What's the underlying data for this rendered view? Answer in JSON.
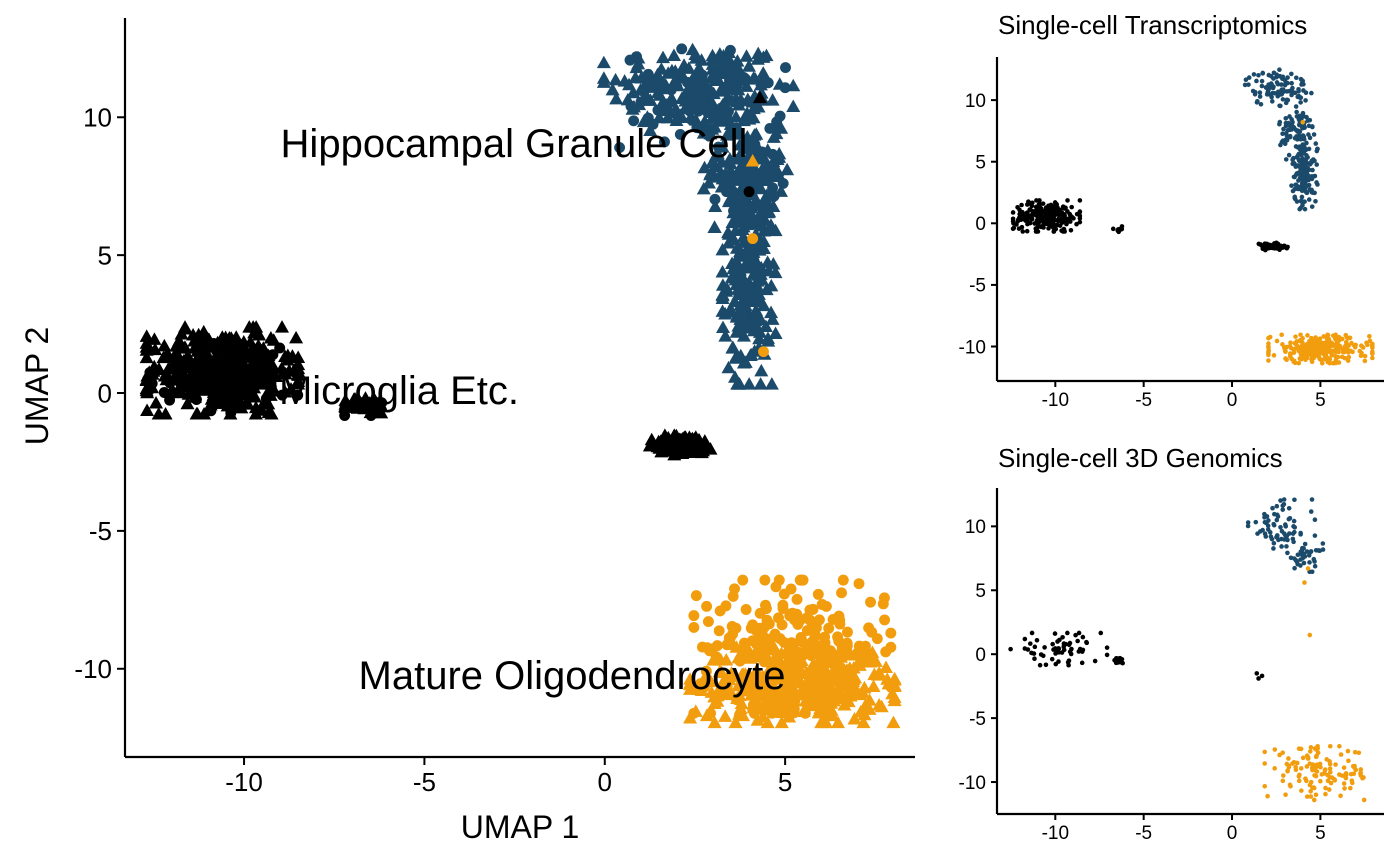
{
  "colors": {
    "hippocampal_granule_cell": "#1b4a6b",
    "microglia_etc": "#000000",
    "mature_oligodendrocyte": "#f29d0e",
    "axis": "#000000"
  },
  "chart_data": [
    {
      "type": "scatter",
      "id": "main",
      "title": "",
      "xlabel": "UMAP 1",
      "ylabel": "UMAP 2",
      "xlim": [
        -13.3,
        8.6
      ],
      "ylim": [
        -13.2,
        13.6
      ],
      "xticks": [
        -10,
        -5,
        0,
        5
      ],
      "yticks": [
        -10,
        -5,
        0,
        5,
        10
      ],
      "xtick_labels": [
        "-10",
        "-5",
        "0",
        "5"
      ],
      "ytick_labels": [
        "-10",
        "-5",
        "0",
        "5",
        "10"
      ],
      "grid": false,
      "legend": "none",
      "cluster_labels": [
        {
          "text": "Hippocampal Granule Cell",
          "x": 0.0,
          "y": 9.0
        },
        {
          "text": "Microglia Etc.",
          "x": -3.5,
          "y": 0.0
        },
        {
          "text": "Mature Oligodendrocyte",
          "x": 0.8,
          "y": -10.0
        }
      ],
      "markers": {
        "single-cell transcriptomics": "triangle",
        "single-cell 3D genomics": "circle"
      },
      "clusters": [
        {
          "type": "Hippocampal Granule Cell",
          "color_key": "hippocampal_granule_cell",
          "marker": "triangle",
          "n": 520,
          "blobs": [
            {
              "cx": 2.6,
              "cy": 11.0,
              "sx": 1.25,
              "sy": 0.85,
              "w": 0.34
            },
            {
              "cx": 3.9,
              "cy": 8.3,
              "sx": 0.55,
              "sy": 1.1,
              "w": 0.2
            },
            {
              "cx": 4.0,
              "cy": 4.3,
              "sx": 0.35,
              "sy": 1.9,
              "w": 0.46
            }
          ]
        },
        {
          "type": "Hippocampal Granule Cell",
          "color_key": "hippocampal_granule_cell",
          "marker": "circle",
          "n": 90,
          "blobs": [
            {
              "cx": 2.7,
              "cy": 10.6,
              "sx": 1.1,
              "sy": 0.9,
              "w": 0.6
            },
            {
              "cx": 4.0,
              "cy": 7.7,
              "sx": 0.45,
              "sy": 0.7,
              "w": 0.4
            }
          ]
        },
        {
          "type": "Microglia Etc.",
          "color_key": "microglia_etc",
          "marker": "triangle",
          "n": 400,
          "blobs": [
            {
              "cx": -10.6,
              "cy": 0.8,
              "sx": 1.0,
              "sy": 0.75,
              "w": 0.9
            },
            {
              "cx": -6.6,
              "cy": -0.45,
              "sx": 0.28,
              "sy": 0.15,
              "w": 0.1
            }
          ]
        },
        {
          "type": "Microglia Etc.",
          "color_key": "microglia_etc",
          "marker": "triangle",
          "n": 110,
          "blobs": [
            {
              "cx": 2.2,
              "cy": -1.9,
              "sx": 0.45,
              "sy": 0.17,
              "w": 1.0
            }
          ]
        },
        {
          "type": "Microglia Etc.",
          "color_key": "microglia_etc",
          "marker": "circle",
          "n": 60,
          "blobs": [
            {
              "cx": -10.3,
              "cy": 0.7,
              "sx": 1.1,
              "sy": 0.7,
              "w": 0.8
            },
            {
              "cx": -6.6,
              "cy": -0.5,
              "sx": 0.3,
              "sy": 0.15,
              "w": 0.2
            }
          ]
        },
        {
          "type": "Mature Oligodendrocyte",
          "color_key": "mature_oligodendrocyte",
          "marker": "circle",
          "n": 230,
          "blobs": [
            {
              "cx": 5.2,
              "cy": -9.2,
              "sx": 1.3,
              "sy": 1.15,
              "w": 1.0
            }
          ]
        },
        {
          "type": "Mature Oligodendrocyte",
          "color_key": "mature_oligodendrocyte",
          "marker": "triangle",
          "n": 330,
          "blobs": [
            {
              "cx": 5.2,
              "cy": -10.6,
              "sx": 1.35,
              "sy": 0.65,
              "w": 1.0
            }
          ]
        }
      ],
      "extra_points": [
        {
          "x": 4.3,
          "y": 10.7,
          "color_key": "microglia_etc",
          "marker": "triangle"
        },
        {
          "x": 4.0,
          "y": 7.3,
          "color_key": "microglia_etc",
          "marker": "circle"
        },
        {
          "x": 4.1,
          "y": 5.6,
          "color_key": "mature_oligodendrocyte",
          "marker": "circle"
        },
        {
          "x": 4.1,
          "y": 8.4,
          "color_key": "mature_oligodendrocyte",
          "marker": "triangle"
        },
        {
          "x": 4.4,
          "y": 1.5,
          "color_key": "mature_oligodendrocyte",
          "marker": "circle"
        }
      ]
    },
    {
      "type": "scatter",
      "id": "transcriptomics",
      "title": "Single-cell Transcriptomics",
      "xlabel": "",
      "ylabel": "",
      "xlim": [
        -13.3,
        8.6
      ],
      "ylim": [
        -12.8,
        13.5
      ],
      "xticks": [
        -10,
        -5,
        0,
        5
      ],
      "yticks": [
        -10,
        -5,
        0,
        5,
        10
      ],
      "xtick_labels": [
        "-10",
        "-5",
        "0",
        "5"
      ],
      "ytick_labels": [
        "-10",
        "-5",
        "0",
        "5",
        "10"
      ],
      "grid": false,
      "legend": "none",
      "clusters": [
        {
          "type": "Hippocampal Granule Cell",
          "color_key": "hippocampal_granule_cell",
          "marker": "dot",
          "n": 330,
          "blobs": [
            {
              "cx": 2.6,
              "cy": 11.0,
              "sx": 0.9,
              "sy": 0.7,
              "w": 0.3
            },
            {
              "cx": 3.6,
              "cy": 7.5,
              "sx": 0.45,
              "sy": 1.1,
              "w": 0.25
            },
            {
              "cx": 4.1,
              "cy": 4.3,
              "sx": 0.35,
              "sy": 1.5,
              "w": 0.45
            }
          ]
        },
        {
          "type": "Microglia Etc.",
          "color_key": "microglia_etc",
          "marker": "dot",
          "n": 260,
          "blobs": [
            {
              "cx": -10.5,
              "cy": 0.6,
              "sx": 0.9,
              "sy": 0.6,
              "w": 0.97
            },
            {
              "cx": -6.5,
              "cy": -0.5,
              "sx": 0.2,
              "sy": 0.12,
              "w": 0.03
            }
          ]
        },
        {
          "type": "Microglia Etc.",
          "color_key": "microglia_etc",
          "marker": "dot",
          "n": 60,
          "blobs": [
            {
              "cx": 2.2,
              "cy": -1.9,
              "sx": 0.45,
              "sy": 0.15,
              "w": 1.0
            }
          ]
        },
        {
          "type": "Mature Oligodendrocyte",
          "color_key": "mature_oligodendrocyte",
          "marker": "dot",
          "n": 300,
          "blobs": [
            {
              "cx": 5.0,
              "cy": -10.2,
              "sx": 1.4,
              "sy": 0.55,
              "w": 1.0
            }
          ]
        }
      ],
      "extra_points": [
        {
          "x": 4.0,
          "y": 8.2,
          "color_key": "mature_oligodendrocyte",
          "marker": "dot"
        }
      ]
    },
    {
      "type": "scatter",
      "id": "genomics",
      "title": "Single-cell 3D Genomics",
      "xlabel": "",
      "ylabel": "",
      "xlim": [
        -13.3,
        8.6
      ],
      "ylim": [
        -12.5,
        13.0
      ],
      "xticks": [
        -10,
        -5,
        0,
        5
      ],
      "yticks": [
        -10,
        -5,
        0,
        5,
        10
      ],
      "xtick_labels": [
        "-10",
        "-5",
        "0",
        "5"
      ],
      "ytick_labels": [
        "-10",
        "-5",
        "0",
        "5",
        "10"
      ],
      "grid": false,
      "legend": "none",
      "clusters": [
        {
          "type": "Hippocampal Granule Cell",
          "color_key": "hippocampal_granule_cell",
          "marker": "dot",
          "n": 105,
          "blobs": [
            {
              "cx": 2.8,
              "cy": 10.0,
              "sx": 0.9,
              "sy": 1.0,
              "w": 0.65
            },
            {
              "cx": 4.1,
              "cy": 7.6,
              "sx": 0.5,
              "sy": 0.55,
              "w": 0.35
            }
          ]
        },
        {
          "type": "Microglia Etc.",
          "color_key": "microglia_etc",
          "marker": "dot",
          "n": 72,
          "blobs": [
            {
              "cx": -9.8,
              "cy": 0.4,
              "sx": 1.3,
              "sy": 0.6,
              "w": 0.85
            },
            {
              "cx": -6.5,
              "cy": -0.5,
              "sx": 0.2,
              "sy": 0.1,
              "w": 0.15
            }
          ]
        },
        {
          "type": "Mature Oligodendrocyte",
          "color_key": "mature_oligodendrocyte",
          "marker": "dot",
          "n": 125,
          "blobs": [
            {
              "cx": 5.0,
              "cy": -9.3,
              "sx": 1.5,
              "sy": 1.0,
              "w": 1.0
            }
          ]
        }
      ],
      "extra_points": [
        {
          "x": 1.4,
          "y": -1.5,
          "color_key": "microglia_etc",
          "marker": "dot"
        },
        {
          "x": 1.7,
          "y": -1.7,
          "color_key": "microglia_etc",
          "marker": "dot"
        },
        {
          "x": 1.5,
          "y": -1.9,
          "color_key": "microglia_etc",
          "marker": "dot"
        },
        {
          "x": 4.4,
          "y": 1.5,
          "color_key": "mature_oligodendrocyte",
          "marker": "dot"
        },
        {
          "x": 4.1,
          "y": 5.6,
          "color_key": "mature_oligodendrocyte",
          "marker": "dot"
        },
        {
          "x": 4.3,
          "y": 6.7,
          "color_key": "mature_oligodendrocyte",
          "marker": "dot"
        }
      ]
    }
  ]
}
